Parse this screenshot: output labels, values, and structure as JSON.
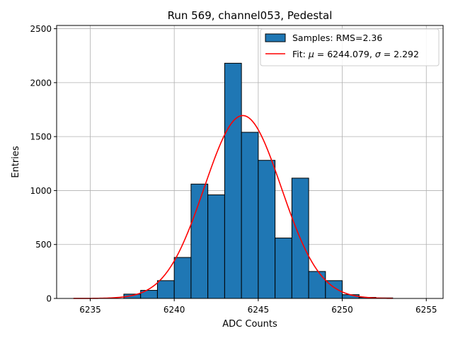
{
  "chart_data": {
    "type": "bar",
    "title": "Run 569, channel053, Pedestal",
    "xlabel": "ADC Counts",
    "ylabel": "Entries",
    "xlim": [
      6233.0,
      6256.0
    ],
    "ylim": [
      0,
      2530
    ],
    "x_ticks": [
      6235,
      6240,
      6245,
      6250,
      6255
    ],
    "y_ticks": [
      0,
      500,
      1000,
      1500,
      2000,
      2500
    ],
    "grid": true,
    "legend_position": "top-right",
    "bar_color": "#1f77b4",
    "bar_edge_color": "#000000",
    "fit_color": "#ff0000",
    "histogram": {
      "name": "Samples: RMS=2.36",
      "bin_width": 1,
      "bins": [
        {
          "left": 6237,
          "value": 40
        },
        {
          "left": 6238,
          "value": 75
        },
        {
          "left": 6239,
          "value": 165
        },
        {
          "left": 6240,
          "value": 380
        },
        {
          "left": 6241,
          "value": 1060
        },
        {
          "left": 6242,
          "value": 960
        },
        {
          "left": 6243,
          "value": 2180
        },
        {
          "left": 6244,
          "value": 1540
        },
        {
          "left": 6245,
          "value": 1280
        },
        {
          "left": 6246,
          "value": 560
        },
        {
          "left": 6247,
          "value": 1115
        },
        {
          "left": 6248,
          "value": 250
        },
        {
          "left": 6249,
          "value": 165
        },
        {
          "left": 6250,
          "value": 35
        },
        {
          "left": 6251,
          "value": 10
        },
        {
          "left": 6252,
          "value": 5
        }
      ]
    },
    "fit": {
      "name_prefix": "Fit: ",
      "name_mu_symbol": "μ",
      "name_mu_text": " = 6244.079, ",
      "name_sigma_symbol": "σ",
      "name_sigma_text": " = 2.292",
      "mu": 6244.079,
      "sigma": 2.292,
      "amplitude": 1695,
      "x_range": [
        6234,
        6253
      ]
    }
  }
}
